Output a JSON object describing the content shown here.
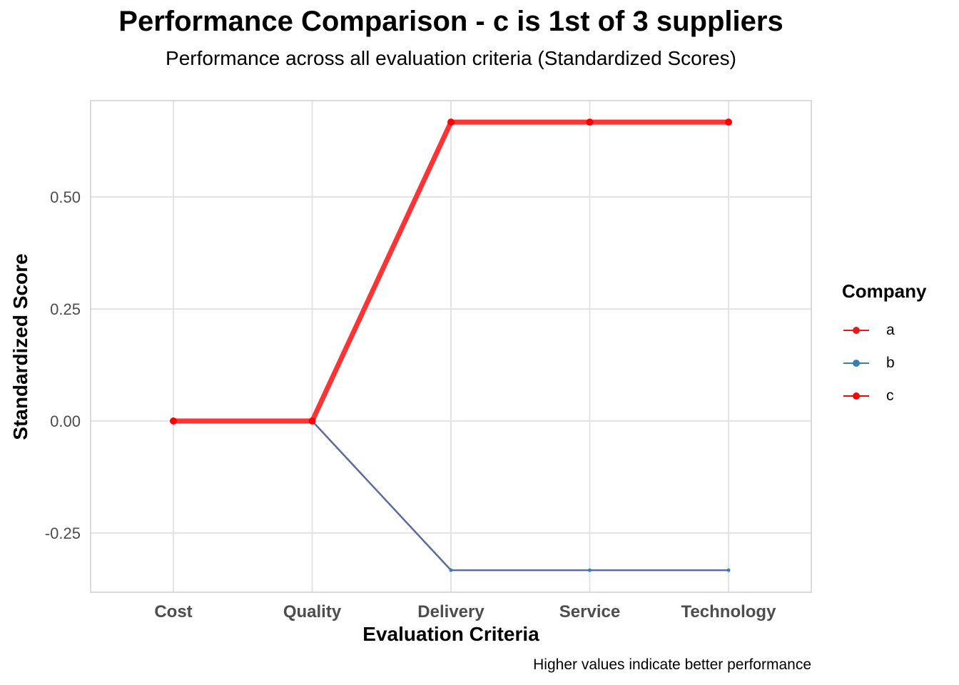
{
  "chart_data": {
    "type": "line",
    "title": "Performance Comparison - c is 1st of 3 suppliers",
    "subtitle": "Performance across all evaluation criteria (Standardized Scores)",
    "xlabel": "Evaluation Criteria",
    "ylabel": "Standardized Score",
    "caption": "Higher values indicate better performance",
    "categories": [
      "Cost",
      "Quality",
      "Delivery",
      "Service",
      "Technology"
    ],
    "ylim": [
      -0.38,
      0.72
    ],
    "yticks": [
      0.5,
      0.25,
      0.0,
      -0.25
    ],
    "ytick_labels": [
      "0.50",
      "0.25",
      "0.00",
      "-0.25"
    ],
    "grid": true,
    "legend": {
      "title": "Company",
      "position": "right"
    },
    "series": [
      {
        "name": "a",
        "values": [
          0,
          0,
          0.667,
          0.667,
          0.667
        ],
        "color": "#e41a1c"
      },
      {
        "name": "b",
        "values": [
          0,
          0,
          -0.333,
          -0.333,
          -0.333
        ],
        "color": "#377eb8"
      },
      {
        "name": "c",
        "values": [
          0,
          0,
          0.667,
          0.667,
          0.667
        ],
        "color": "#ff0000",
        "highlight": true
      }
    ]
  }
}
